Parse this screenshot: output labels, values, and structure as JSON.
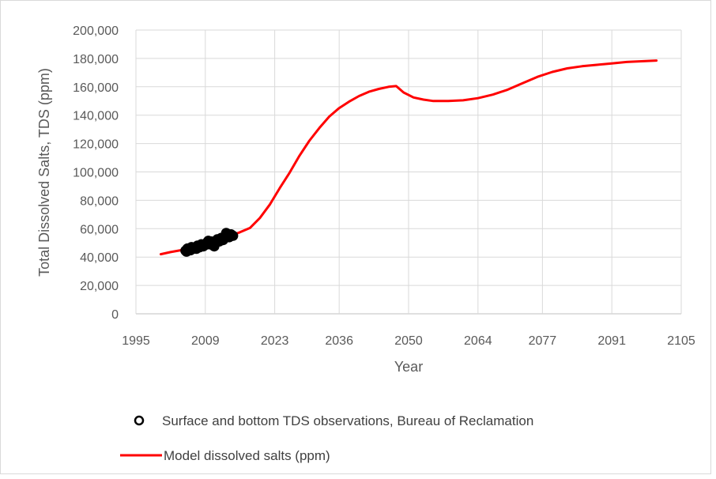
{
  "chart_data": {
    "type": "line",
    "xlabel": "Year",
    "ylabel": "Total Dissolved Salts, TDS (ppm)",
    "xlim": [
      1995,
      2105
    ],
    "ylim": [
      0,
      200000
    ],
    "x_ticks": [
      "1995",
      "2009",
      "2023",
      "2036",
      "2050",
      "2064",
      "2077",
      "2091",
      "2105"
    ],
    "x_tick_values": [
      1995,
      2009,
      2023,
      2036,
      2050,
      2064,
      2077,
      2091,
      2105
    ],
    "y_ticks": [
      "0",
      "20,000",
      "40,000",
      "60,000",
      "80,000",
      "100,000",
      "120,000",
      "140,000",
      "160,000",
      "180,000",
      "200,000"
    ],
    "y_tick_values": [
      0,
      20000,
      40000,
      60000,
      80000,
      100000,
      120000,
      140000,
      160000,
      180000,
      200000
    ],
    "grid": true,
    "legend_position": "bottom",
    "series": [
      {
        "name": "Surface and bottom TDS observations, Bureau of Reclamation",
        "type": "scatter",
        "color": "#000000",
        "x": [
          2005.0,
          2005.4,
          2005.8,
          2006.2,
          2006.6,
          2007.0,
          2007.4,
          2007.8,
          2008.2,
          2008.6,
          2009.0,
          2009.4,
          2009.8,
          2010.2,
          2010.6,
          2011.0,
          2011.4,
          2011.8,
          2012.2,
          2012.6,
          2013.0,
          2013.4,
          2013.8,
          2014.2,
          2014.6,
          2005.2,
          2006.0,
          2007.2,
          2008.4,
          2009.6,
          2010.8,
          2012.0,
          2013.2,
          2014.0
        ],
        "y": [
          44500,
          46000,
          45200,
          47000,
          45800,
          46500,
          48000,
          46800,
          49000,
          47500,
          48500,
          50500,
          49000,
          51000,
          48000,
          50000,
          52500,
          51000,
          53500,
          52000,
          55000,
          56500,
          54000,
          56000,
          55000,
          43800,
          44800,
          45800,
          47800,
          51500,
          47500,
          52000,
          57000,
          54500
        ]
      },
      {
        "name": "Model dissolved salts (ppm)",
        "type": "line",
        "color": "#ff0000",
        "x": [
          2000,
          2002,
          2004,
          2006,
          2008,
          2010,
          2012,
          2014,
          2016,
          2018,
          2020,
          2022,
          2024,
          2026,
          2028,
          2030,
          2032,
          2034,
          2036,
          2038,
          2040,
          2042,
          2044,
          2046,
          2047.5,
          2049,
          2051,
          2053,
          2055,
          2058,
          2061,
          2064,
          2067,
          2070,
          2073,
          2076,
          2079,
          2082,
          2085,
          2088,
          2091,
          2094,
          2097,
          2100
        ],
        "y": [
          42000,
          43500,
          44800,
          46300,
          48000,
          50000,
          52500,
          55000,
          57500,
          60500,
          67500,
          77000,
          88500,
          99500,
          111500,
          122000,
          131000,
          139000,
          145000,
          149500,
          153500,
          156500,
          158500,
          160000,
          160500,
          156000,
          152500,
          151000,
          150000,
          150000,
          150500,
          152000,
          154500,
          158000,
          162500,
          167000,
          170500,
          173000,
          174500,
          175500,
          176500,
          177500,
          178000,
          178500
        ]
      }
    ]
  }
}
